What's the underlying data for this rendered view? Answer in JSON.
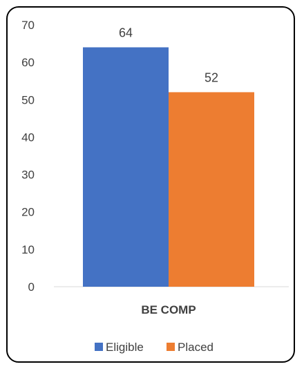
{
  "chart_data": {
    "type": "bar",
    "title": "",
    "xlabel": "",
    "ylabel": "",
    "categories": [
      "BE COMP"
    ],
    "series": [
      {
        "name": "Eligible",
        "values": [
          64
        ],
        "color": "#4472C4"
      },
      {
        "name": "Placed",
        "values": [
          52
        ],
        "color": "#ED7D31"
      }
    ],
    "ylim": [
      0,
      70
    ],
    "yticks": [
      0,
      10,
      20,
      30,
      40,
      50,
      60,
      70
    ],
    "data_labels": true,
    "grid": false,
    "legend_position": "bottom"
  }
}
